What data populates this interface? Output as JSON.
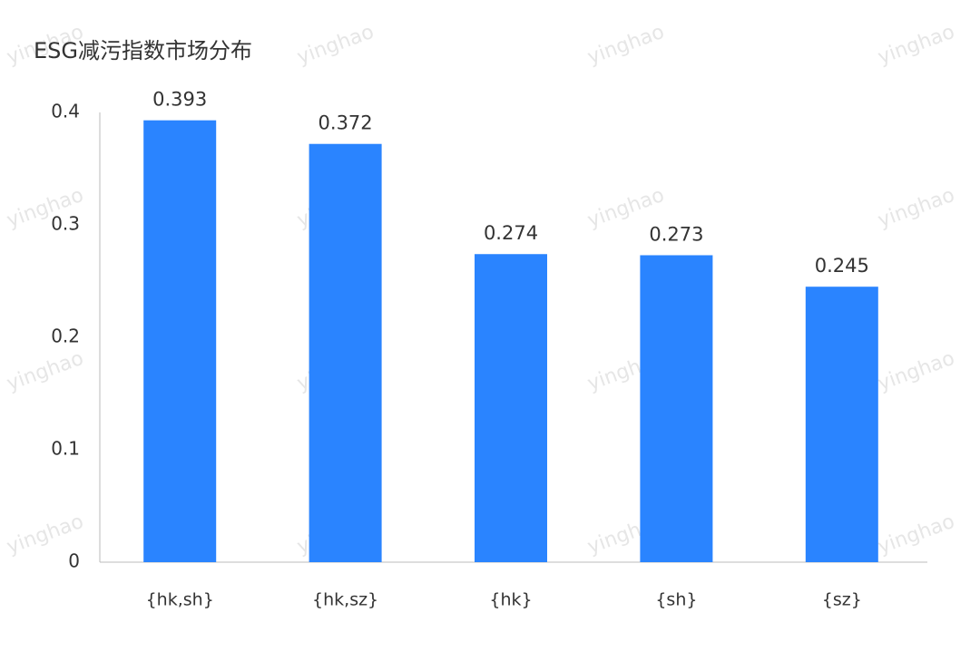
{
  "watermark": "yinghao",
  "chart_data": {
    "type": "bar",
    "title": "ESG减污指数市场分布",
    "categories": [
      "{hk,sh}",
      "{hk,sz}",
      "{hk}",
      "{sh}",
      "{sz}"
    ],
    "values": [
      0.393,
      0.372,
      0.274,
      0.273,
      0.245
    ],
    "color": "#2a84ff",
    "ylim": [
      0,
      0.4
    ],
    "yticks": [
      0,
      0.1,
      0.2,
      0.3,
      0.4
    ],
    "grid": false
  }
}
